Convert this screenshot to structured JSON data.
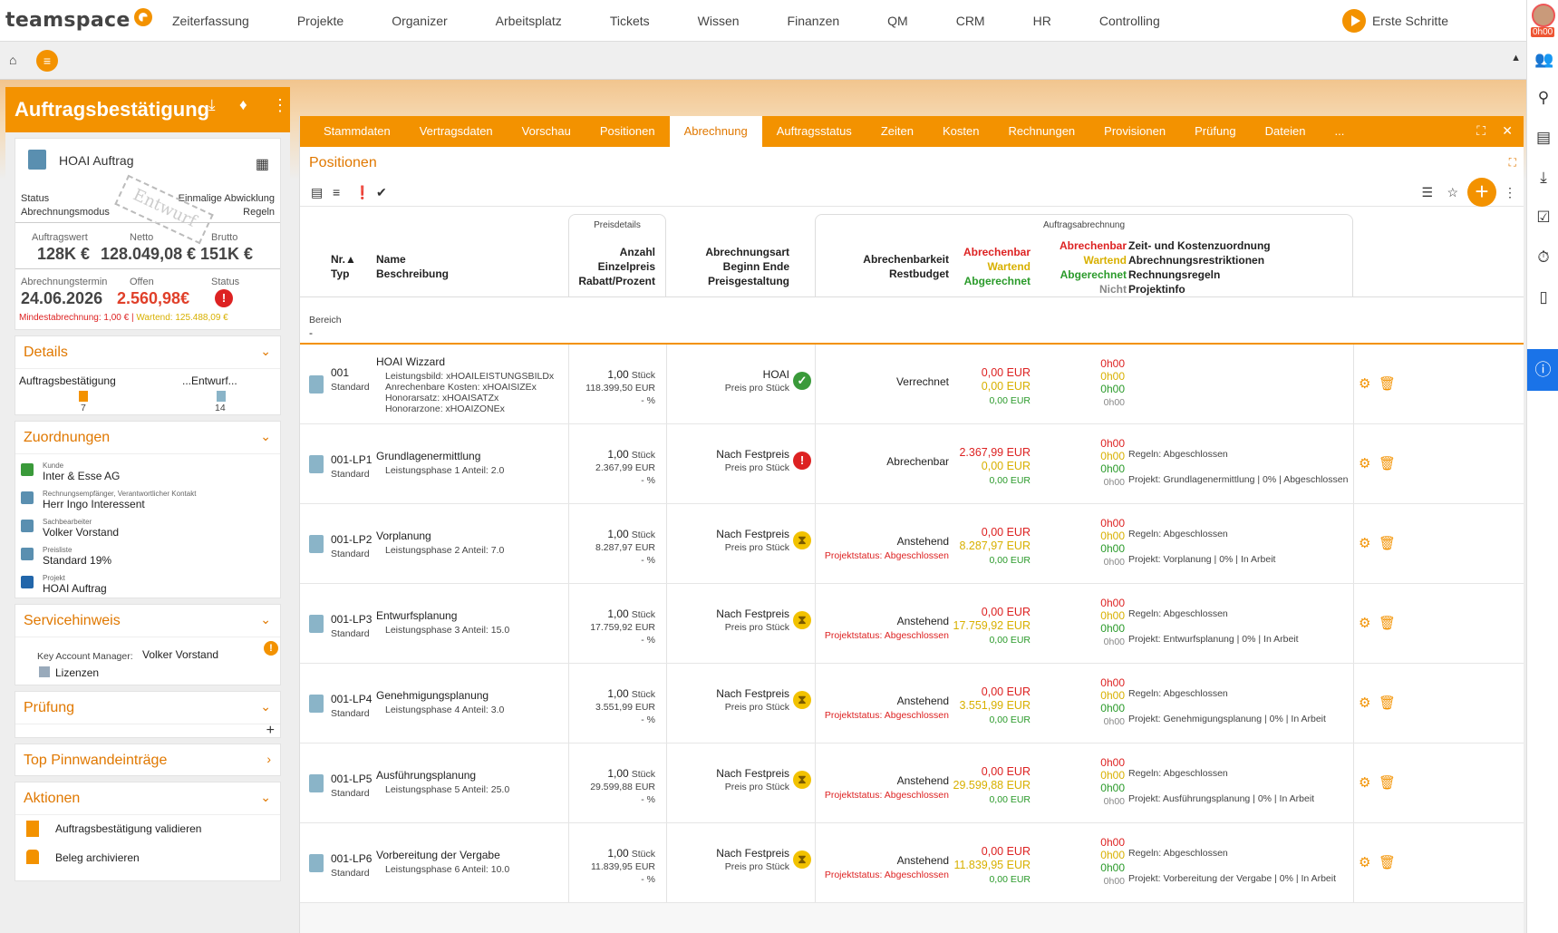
{
  "topnav": {
    "logo": "teamspace",
    "items": [
      "Zeiterfassung",
      "Projekte",
      "Organizer",
      "Arbeitsplatz",
      "Tickets",
      "Wissen",
      "Finanzen",
      "QM",
      "CRM",
      "HR",
      "Controlling"
    ],
    "first_steps": "Erste Schritte",
    "timer": "0h00"
  },
  "left": {
    "title": "Auftragsbestätigung",
    "summary": {
      "doc_title": "HOAI Auftrag",
      "status_label": "Status",
      "status_value": "Einmalige Abwicklung",
      "mode_label": "Abrechnungsmodus",
      "mode_value": "Regeln",
      "stamp": "Entwurf",
      "auftragswert_label": "Auftragswert",
      "auftragswert": "128K €",
      "netto_label": "Netto",
      "netto": "128.049,08 €",
      "brutto_label": "Brutto",
      "brutto": "151K €",
      "termin_label": "Abrechnungstermin",
      "termin": "24.06.2026",
      "offen_label": "Offen",
      "offen": "2.560,98€",
      "status2_label": "Status",
      "mindest": "Mindestabrechnung: 1,00 € |",
      "wartend": "Wartend: 125.488,09 €"
    },
    "details": {
      "title": "Details",
      "item1": "Auftragsbestätigung",
      "item1_count": "7",
      "item2": "...Entwurf...",
      "item2_count": "14"
    },
    "zuordnungen": {
      "title": "Zuordnungen",
      "items": [
        {
          "label": "Kunde",
          "value": "Inter & Esse AG"
        },
        {
          "label": "Rechnungsempfänger, Verantwortlicher Kontakt",
          "value": "Herr Ingo Interessent"
        },
        {
          "label": "Sachbearbeiter",
          "value": "Volker Vorstand"
        },
        {
          "label": "Preisliste",
          "value": "Standard 19%"
        },
        {
          "label": "Projekt",
          "value": "HOAI Auftrag"
        }
      ]
    },
    "servicehinweis": {
      "title": "Servicehinweis",
      "kam_label": "Key Account Manager:",
      "kam_value": "Volker Vorstand",
      "lizenzen": "Lizenzen"
    },
    "pruefung": {
      "title": "Prüfung"
    },
    "pinnwand": {
      "title": "Top Pinnwandeinträge"
    },
    "aktionen": {
      "title": "Aktionen",
      "items": [
        "Auftragsbestätigung validieren",
        "Beleg archivieren"
      ]
    }
  },
  "main": {
    "tabs": [
      "Stammdaten",
      "Vertragsdaten",
      "Vorschau",
      "Positionen",
      "Abrechnung",
      "Auftragsstatus",
      "Zeiten",
      "Kosten",
      "Rechnungen",
      "Provisionen",
      "Prüfung",
      "Dateien",
      "..."
    ],
    "active_tab": "Abrechnung",
    "section_title": "Positionen",
    "header": {
      "group_preis": "Preisdetails",
      "group_auftrag": "Auftragsabrechnung",
      "nr": "Nr.▲",
      "typ": "Typ",
      "name": "Name",
      "beschreibung": "Beschreibung",
      "anzahl": "Anzahl",
      "einzelpreis": "Einzelpreis",
      "rabatt": "Rabatt/Prozent",
      "abrart": "Abrechnungsart",
      "beginn": "Beginn Ende",
      "preisgest": "Preisgestaltung",
      "abrechenbarkeit": "Abrechenbarkeit",
      "restbudget": "Restbudget",
      "abrechenbar": "Abrechenbar",
      "wartend": "Wartend",
      "abgerechnet": "Abgerechnet",
      "nicht": "Nicht abrechenbar",
      "zkz": "Zeit- und Kostenzuordnung",
      "restr": "Abrechnungsrestriktionen",
      "regeln": "Rechnungsregeln",
      "projektinfo": "Projektinfo"
    },
    "bereich_label": "Bereich",
    "bereich_value": "-",
    "rows": [
      {
        "nr": "001",
        "typ": "Standard",
        "name": "HOAI Wizzard",
        "desc": [
          "Leistungsbild: xHOAILEISTUNGSBILDx",
          "Anrechenbare Kosten: xHOAISIZEx",
          "Honorarsatz: xHOAISATZx",
          "Honorarzone: xHOAIZONEx"
        ],
        "anzahl": "1,00",
        "unit": "Stück",
        "preis": "118.399,50 EUR",
        "rabatt": "- %",
        "art": "HOAI",
        "preisgest": "Preis pro Stück",
        "state": "ok",
        "abr": "Verrechnet",
        "projstatus": "",
        "a1": "0,00 EUR",
        "a2": "0,00 EUR",
        "a3": "0,00 EUR",
        "t1": "0h00",
        "t2": "0h00",
        "t3": "0h00",
        "t4": "0h00",
        "regel": "",
        "projekt": ""
      },
      {
        "nr": "001-LP1",
        "typ": "Standard",
        "name": "Grundlagenermittlung",
        "desc": [
          "Leistungsphase 1 Anteil: 2.0"
        ],
        "anzahl": "1,00",
        "unit": "Stück",
        "preis": "2.367,99 EUR",
        "rabatt": "- %",
        "art": "Nach Festpreis",
        "preisgest": "Preis pro Stück",
        "state": "err",
        "abr": "Abrechenbar",
        "projstatus": "",
        "a1": "2.367,99 EUR",
        "a2": "0,00 EUR",
        "a3": "0,00 EUR",
        "t1": "0h00",
        "t2": "0h00",
        "t3": "0h00",
        "t4": "0h00",
        "regel": "Regeln: Abgeschlossen",
        "projekt": "Projekt: Grundlagenermittlung | 0% | Abgeschlossen"
      },
      {
        "nr": "001-LP2",
        "typ": "Standard",
        "name": "Vorplanung",
        "desc": [
          "Leistungsphase 2 Anteil: 7.0"
        ],
        "anzahl": "1,00",
        "unit": "Stück",
        "preis": "8.287,97 EUR",
        "rabatt": "- %",
        "art": "Nach Festpreis",
        "preisgest": "Preis pro Stück",
        "state": "wait",
        "abr": "Anstehend",
        "projstatus": "Projektstatus: Abgeschlossen",
        "a1": "0,00 EUR",
        "a2": "8.287,97 EUR",
        "a3": "0,00 EUR",
        "t1": "0h00",
        "t2": "0h00",
        "t3": "0h00",
        "t4": "0h00",
        "regel": "Regeln: Abgeschlossen",
        "projekt": "Projekt: Vorplanung | 0% | In Arbeit"
      },
      {
        "nr": "001-LP3",
        "typ": "Standard",
        "name": "Entwurfsplanung",
        "desc": [
          "Leistungsphase 3 Anteil: 15.0"
        ],
        "anzahl": "1,00",
        "unit": "Stück",
        "preis": "17.759,92 EUR",
        "rabatt": "- %",
        "art": "Nach Festpreis",
        "preisgest": "Preis pro Stück",
        "state": "wait",
        "abr": "Anstehend",
        "projstatus": "Projektstatus: Abgeschlossen",
        "a1": "0,00 EUR",
        "a2": "17.759,92 EUR",
        "a3": "0,00 EUR",
        "t1": "0h00",
        "t2": "0h00",
        "t3": "0h00",
        "t4": "0h00",
        "regel": "Regeln: Abgeschlossen",
        "projekt": "Projekt: Entwurfsplanung | 0% | In Arbeit"
      },
      {
        "nr": "001-LP4",
        "typ": "Standard",
        "name": "Genehmigungsplanung",
        "desc": [
          "Leistungsphase 4 Anteil: 3.0"
        ],
        "anzahl": "1,00",
        "unit": "Stück",
        "preis": "3.551,99 EUR",
        "rabatt": "- %",
        "art": "Nach Festpreis",
        "preisgest": "Preis pro Stück",
        "state": "wait",
        "abr": "Anstehend",
        "projstatus": "Projektstatus: Abgeschlossen",
        "a1": "0,00 EUR",
        "a2": "3.551,99 EUR",
        "a3": "0,00 EUR",
        "t1": "0h00",
        "t2": "0h00",
        "t3": "0h00",
        "t4": "0h00",
        "regel": "Regeln: Abgeschlossen",
        "projekt": "Projekt: Genehmigungsplanung | 0% | In Arbeit"
      },
      {
        "nr": "001-LP5",
        "typ": "Standard",
        "name": "Ausführungsplanung",
        "desc": [
          "Leistungsphase 5 Anteil: 25.0"
        ],
        "anzahl": "1,00",
        "unit": "Stück",
        "preis": "29.599,88 EUR",
        "rabatt": "- %",
        "art": "Nach Festpreis",
        "preisgest": "Preis pro Stück",
        "state": "wait",
        "abr": "Anstehend",
        "projstatus": "Projektstatus: Abgeschlossen",
        "a1": "0,00 EUR",
        "a2": "29.599,88 EUR",
        "a3": "0,00 EUR",
        "t1": "0h00",
        "t2": "0h00",
        "t3": "0h00",
        "t4": "0h00",
        "regel": "Regeln: Abgeschlossen",
        "projekt": "Projekt: Ausführungsplanung | 0% | In Arbeit"
      },
      {
        "nr": "001-LP6",
        "typ": "Standard",
        "name": "Vorbereitung der Vergabe",
        "desc": [
          "Leistungsphase 6 Anteil: 10.0"
        ],
        "anzahl": "1,00",
        "unit": "Stück",
        "preis": "11.839,95 EUR",
        "rabatt": "- %",
        "art": "Nach Festpreis",
        "preisgest": "Preis pro Stück",
        "state": "wait",
        "abr": "Anstehend",
        "projstatus": "Projektstatus: Abgeschlossen",
        "a1": "0,00 EUR",
        "a2": "11.839,95 EUR",
        "a3": "0,00 EUR",
        "t1": "0h00",
        "t2": "0h00",
        "t3": "0h00",
        "t4": "0h00",
        "regel": "Regeln: Abgeschlossen",
        "projekt": "Projekt: Vorbereitung der Vergabe | 0% | In Arbeit"
      }
    ]
  },
  "colors": {
    "accent": "#f39200",
    "error": "#dd2222",
    "warn": "#d8b000",
    "ok": "#2a9a2a"
  }
}
